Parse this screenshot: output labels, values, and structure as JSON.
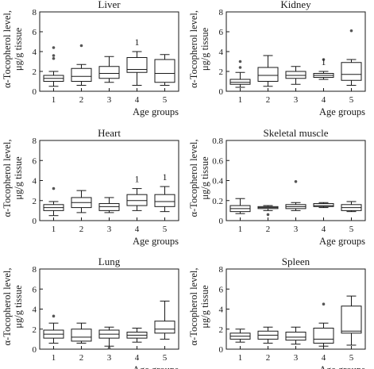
{
  "chart_data": [
    {
      "type": "box",
      "title": "Liver",
      "ylabel_line1": "α-Tocopherol level,",
      "ylabel_line2": "μg/g tissue",
      "xlabel": "Age groups",
      "ylim": [
        0,
        8
      ],
      "yticks": [
        0,
        2,
        4,
        6,
        8
      ],
      "categories": [
        "1",
        "2",
        "3",
        "4",
        "5"
      ],
      "boxes": [
        {
          "lo": 0.5,
          "q1": 1.0,
          "med": 1.3,
          "q3": 1.6,
          "hi": 2.0,
          "out": [
            3.3,
            3.6,
            4.4
          ],
          "ann": ""
        },
        {
          "lo": 0.6,
          "q1": 1.0,
          "med": 1.5,
          "q3": 2.3,
          "hi": 2.7,
          "out": [
            4.6
          ],
          "ann": ""
        },
        {
          "lo": 0.9,
          "q1": 1.3,
          "med": 1.8,
          "q3": 2.5,
          "hi": 3.5,
          "out": [],
          "ann": ""
        },
        {
          "lo": 0.6,
          "q1": 1.9,
          "med": 2.2,
          "q3": 3.4,
          "hi": 4.0,
          "out": [],
          "ann": "1"
        },
        {
          "lo": 0.6,
          "q1": 0.9,
          "med": 1.8,
          "q3": 3.2,
          "hi": 3.7,
          "out": [],
          "ann": ""
        }
      ]
    },
    {
      "type": "box",
      "title": "Kidney",
      "ylabel_line1": "α-Tocopherol level,",
      "ylabel_line2": "μg/g tissue",
      "xlabel": "Age groups",
      "ylim": [
        0,
        8
      ],
      "yticks": [
        0,
        2,
        4,
        6,
        8
      ],
      "categories": [
        "1",
        "2",
        "3",
        "4",
        "5"
      ],
      "boxes": [
        {
          "lo": 0.4,
          "q1": 0.7,
          "med": 0.9,
          "q3": 1.2,
          "hi": 1.9,
          "out": [
            2.4,
            3.0
          ],
          "ann": ""
        },
        {
          "lo": 0.5,
          "q1": 1.0,
          "med": 1.6,
          "q3": 2.4,
          "hi": 3.6,
          "out": [],
          "ann": ""
        },
        {
          "lo": 0.7,
          "q1": 1.3,
          "med": 1.6,
          "q3": 2.0,
          "hi": 2.5,
          "out": [],
          "ann": ""
        },
        {
          "lo": 1.2,
          "q1": 1.4,
          "med": 1.6,
          "q3": 1.8,
          "hi": 2.0,
          "out": [
            3.2
          ],
          "ann": "1"
        },
        {
          "lo": 0.6,
          "q1": 1.1,
          "med": 1.7,
          "q3": 2.9,
          "hi": 3.2,
          "out": [
            6.1
          ],
          "ann": ""
        }
      ]
    },
    {
      "type": "box",
      "title": "Heart",
      "ylabel_line1": "α-Tocopherol level,",
      "ylabel_line2": "μg/g tissue",
      "xlabel": "Age groups",
      "ylim": [
        0,
        8
      ],
      "yticks": [
        0,
        2,
        4,
        6,
        8
      ],
      "categories": [
        "1",
        "2",
        "3",
        "4",
        "5"
      ],
      "boxes": [
        {
          "lo": 0.5,
          "q1": 1.0,
          "med": 1.3,
          "q3": 1.6,
          "hi": 1.9,
          "out": [
            3.2
          ],
          "ann": ""
        },
        {
          "lo": 0.8,
          "q1": 1.3,
          "med": 1.8,
          "q3": 2.3,
          "hi": 3.0,
          "out": [],
          "ann": ""
        },
        {
          "lo": 0.8,
          "q1": 1.0,
          "med": 1.4,
          "q3": 1.7,
          "hi": 2.3,
          "out": [],
          "ann": ""
        },
        {
          "lo": 1.0,
          "q1": 1.5,
          "med": 2.0,
          "q3": 2.6,
          "hi": 3.2,
          "out": [],
          "ann": "1"
        },
        {
          "lo": 0.9,
          "q1": 1.4,
          "med": 1.9,
          "q3": 2.6,
          "hi": 3.4,
          "out": [],
          "ann": "1"
        }
      ]
    },
    {
      "type": "box",
      "title": "Skeletal muscle",
      "ylabel_line1": "α-Tocopherol level,",
      "ylabel_line2": "μg/g tissue",
      "xlabel": "Age groups",
      "ylim": [
        0,
        0.8
      ],
      "yticks": [
        0,
        0.2,
        0.4,
        0.6,
        0.8
      ],
      "categories": [
        "1",
        "2",
        "3",
        "4",
        "5"
      ],
      "boxes": [
        {
          "lo": 0.07,
          "q1": 0.09,
          "med": 0.12,
          "q3": 0.15,
          "hi": 0.22,
          "out": [],
          "ann": ""
        },
        {
          "lo": 0.1,
          "q1": 0.12,
          "med": 0.13,
          "q3": 0.14,
          "hi": 0.15,
          "out": [
            0.06
          ],
          "ann": ""
        },
        {
          "lo": 0.1,
          "q1": 0.12,
          "med": 0.14,
          "q3": 0.16,
          "hi": 0.18,
          "out": [
            0.39
          ],
          "ann": ""
        },
        {
          "lo": 0.13,
          "q1": 0.14,
          "med": 0.15,
          "q3": 0.17,
          "hi": 0.18,
          "out": [],
          "ann": ""
        },
        {
          "lo": 0.09,
          "q1": 0.1,
          "med": 0.13,
          "q3": 0.16,
          "hi": 0.19,
          "out": [],
          "ann": ""
        }
      ]
    },
    {
      "type": "box",
      "title": "Lung",
      "ylabel_line1": "α-Tocopherol level,",
      "ylabel_line2": "μg/g tissue",
      "xlabel": "Age groups",
      "ylim": [
        0,
        8
      ],
      "yticks": [
        0,
        2,
        4,
        6,
        8
      ],
      "categories": [
        "1",
        "2",
        "3",
        "4",
        "5"
      ],
      "boxes": [
        {
          "lo": 0.6,
          "q1": 1.1,
          "med": 1.5,
          "q3": 1.9,
          "hi": 2.6,
          "out": [
            3.3
          ],
          "ann": ""
        },
        {
          "lo": 0.6,
          "q1": 0.8,
          "med": 1.2,
          "q3": 2.0,
          "hi": 2.6,
          "out": [],
          "ann": ""
        },
        {
          "lo": 0.3,
          "q1": 1.1,
          "med": 1.5,
          "q3": 1.9,
          "hi": 2.2,
          "out": [
            0.1
          ],
          "ann": ""
        },
        {
          "lo": 0.7,
          "q1": 1.1,
          "med": 1.4,
          "q3": 1.7,
          "hi": 2.1,
          "out": [],
          "ann": ""
        },
        {
          "lo": 1.0,
          "q1": 1.6,
          "med": 2.0,
          "q3": 2.8,
          "hi": 4.8,
          "out": [],
          "ann": ""
        }
      ]
    },
    {
      "type": "box",
      "title": "Spleen",
      "ylabel_line1": "α-Tocopherol level,",
      "ylabel_line2": "μg/g tissue",
      "xlabel": "Age groups",
      "ylim": [
        0,
        8
      ],
      "yticks": [
        0,
        2,
        4,
        6,
        8
      ],
      "categories": [
        "1",
        "2",
        "3",
        "4",
        "5"
      ],
      "boxes": [
        {
          "lo": 0.7,
          "q1": 1.0,
          "med": 1.3,
          "q3": 1.6,
          "hi": 2.0,
          "out": [],
          "ann": ""
        },
        {
          "lo": 0.6,
          "q1": 1.0,
          "med": 1.4,
          "q3": 1.8,
          "hi": 2.2,
          "out": [],
          "ann": ""
        },
        {
          "lo": 0.5,
          "q1": 0.9,
          "med": 1.2,
          "q3": 1.7,
          "hi": 2.2,
          "out": [],
          "ann": ""
        },
        {
          "lo": 0.3,
          "q1": 0.6,
          "med": 1.0,
          "q3": 2.1,
          "hi": 2.6,
          "out": [
            4.5
          ],
          "ann": ""
        },
        {
          "lo": 0.4,
          "q1": 1.6,
          "med": 1.8,
          "q3": 4.3,
          "hi": 5.3,
          "out": [],
          "ann": ""
        }
      ]
    }
  ]
}
